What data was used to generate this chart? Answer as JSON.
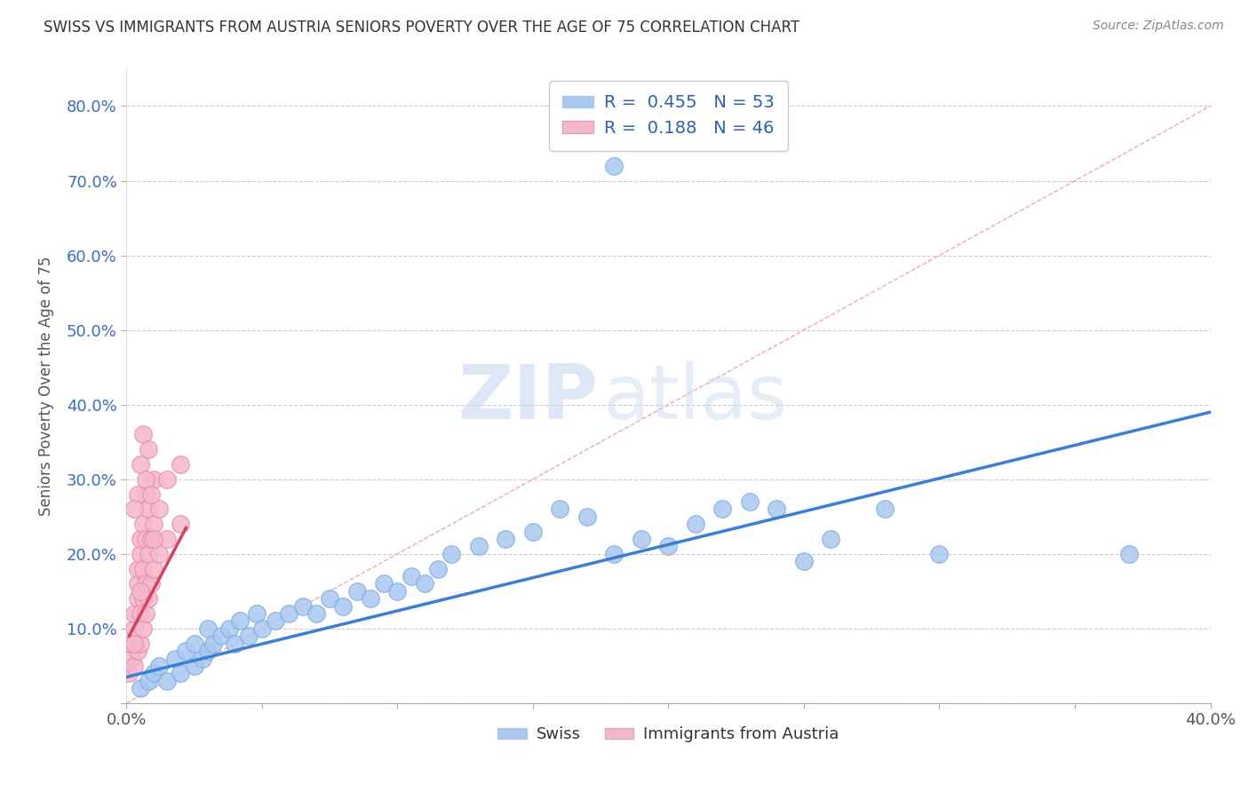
{
  "title": "SWISS VS IMMIGRANTS FROM AUSTRIA SENIORS POVERTY OVER THE AGE OF 75 CORRELATION CHART",
  "source": "Source: ZipAtlas.com",
  "ylabel": "Seniors Poverty Over the Age of 75",
  "xlim": [
    0.0,
    0.4
  ],
  "ylim": [
    0.0,
    0.85
  ],
  "xticks": [
    0.0,
    0.05,
    0.1,
    0.15,
    0.2,
    0.25,
    0.3,
    0.35,
    0.4
  ],
  "yticks": [
    0.0,
    0.1,
    0.2,
    0.3,
    0.4,
    0.5,
    0.6,
    0.7,
    0.8
  ],
  "swiss_color": "#a8c8f0",
  "swiss_edge_color": "#7aabe0",
  "austria_color": "#f5b8cb",
  "austria_edge_color": "#e888a8",
  "swiss_line_color": "#3a7fd5",
  "austria_line_color": "#d94060",
  "diag_line_color": "#e8a0b0",
  "R_swiss": 0.455,
  "N_swiss": 53,
  "R_austria": 0.188,
  "N_austria": 46,
  "legend_R_color": "#3060b0",
  "legend_N_color": "#3060b0",
  "watermark_zip": "ZIP",
  "watermark_atlas": "atlas",
  "swiss_scatter": [
    [
      0.005,
      0.02
    ],
    [
      0.008,
      0.03
    ],
    [
      0.01,
      0.04
    ],
    [
      0.012,
      0.05
    ],
    [
      0.015,
      0.03
    ],
    [
      0.018,
      0.06
    ],
    [
      0.02,
      0.04
    ],
    [
      0.022,
      0.07
    ],
    [
      0.025,
      0.05
    ],
    [
      0.025,
      0.08
    ],
    [
      0.028,
      0.06
    ],
    [
      0.03,
      0.07
    ],
    [
      0.03,
      0.1
    ],
    [
      0.032,
      0.08
    ],
    [
      0.035,
      0.09
    ],
    [
      0.038,
      0.1
    ],
    [
      0.04,
      0.08
    ],
    [
      0.042,
      0.11
    ],
    [
      0.045,
      0.09
    ],
    [
      0.048,
      0.12
    ],
    [
      0.05,
      0.1
    ],
    [
      0.055,
      0.11
    ],
    [
      0.06,
      0.12
    ],
    [
      0.065,
      0.13
    ],
    [
      0.07,
      0.12
    ],
    [
      0.075,
      0.14
    ],
    [
      0.08,
      0.13
    ],
    [
      0.085,
      0.15
    ],
    [
      0.09,
      0.14
    ],
    [
      0.095,
      0.16
    ],
    [
      0.1,
      0.15
    ],
    [
      0.105,
      0.17
    ],
    [
      0.11,
      0.16
    ],
    [
      0.115,
      0.18
    ],
    [
      0.12,
      0.2
    ],
    [
      0.13,
      0.21
    ],
    [
      0.14,
      0.22
    ],
    [
      0.15,
      0.23
    ],
    [
      0.16,
      0.26
    ],
    [
      0.17,
      0.25
    ],
    [
      0.18,
      0.2
    ],
    [
      0.19,
      0.22
    ],
    [
      0.2,
      0.21
    ],
    [
      0.21,
      0.24
    ],
    [
      0.22,
      0.26
    ],
    [
      0.23,
      0.27
    ],
    [
      0.24,
      0.26
    ],
    [
      0.25,
      0.19
    ],
    [
      0.26,
      0.22
    ],
    [
      0.28,
      0.26
    ],
    [
      0.3,
      0.2
    ],
    [
      0.37,
      0.2
    ],
    [
      0.18,
      0.72
    ]
  ],
  "austria_scatter": [
    [
      0.001,
      0.04
    ],
    [
      0.002,
      0.06
    ],
    [
      0.002,
      0.08
    ],
    [
      0.003,
      0.05
    ],
    [
      0.003,
      0.1
    ],
    [
      0.003,
      0.12
    ],
    [
      0.004,
      0.07
    ],
    [
      0.004,
      0.14
    ],
    [
      0.004,
      0.16
    ],
    [
      0.004,
      0.18
    ],
    [
      0.005,
      0.08
    ],
    [
      0.005,
      0.12
    ],
    [
      0.005,
      0.2
    ],
    [
      0.005,
      0.22
    ],
    [
      0.006,
      0.1
    ],
    [
      0.006,
      0.14
    ],
    [
      0.006,
      0.18
    ],
    [
      0.006,
      0.24
    ],
    [
      0.007,
      0.12
    ],
    [
      0.007,
      0.16
    ],
    [
      0.007,
      0.22
    ],
    [
      0.007,
      0.28
    ],
    [
      0.008,
      0.14
    ],
    [
      0.008,
      0.2
    ],
    [
      0.008,
      0.26
    ],
    [
      0.009,
      0.16
    ],
    [
      0.009,
      0.22
    ],
    [
      0.01,
      0.18
    ],
    [
      0.01,
      0.24
    ],
    [
      0.01,
      0.3
    ],
    [
      0.012,
      0.2
    ],
    [
      0.012,
      0.26
    ],
    [
      0.015,
      0.22
    ],
    [
      0.015,
      0.3
    ],
    [
      0.02,
      0.24
    ],
    [
      0.02,
      0.32
    ],
    [
      0.005,
      0.32
    ],
    [
      0.006,
      0.36
    ],
    [
      0.004,
      0.28
    ],
    [
      0.008,
      0.34
    ],
    [
      0.003,
      0.26
    ],
    [
      0.007,
      0.3
    ],
    [
      0.009,
      0.28
    ],
    [
      0.01,
      0.22
    ],
    [
      0.005,
      0.15
    ],
    [
      0.003,
      0.08
    ]
  ],
  "swiss_line_x": [
    0.0,
    0.4
  ],
  "swiss_line_y": [
    0.035,
    0.39
  ],
  "austria_line_x": [
    0.001,
    0.022
  ],
  "austria_line_y": [
    0.09,
    0.235
  ]
}
